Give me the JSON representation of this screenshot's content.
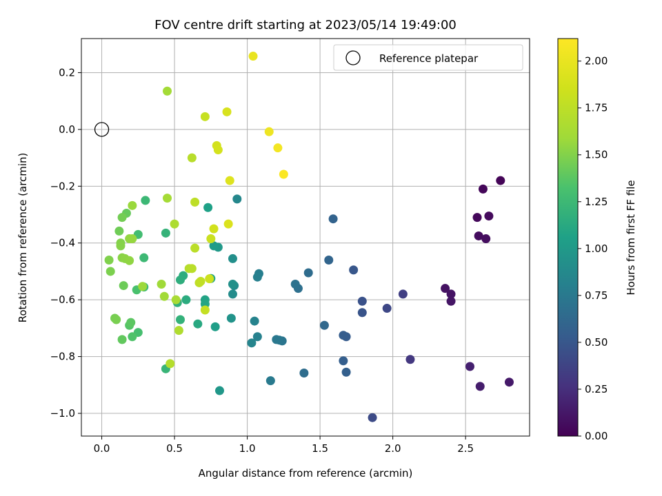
{
  "chart_data": {
    "type": "scatter",
    "title": "FOV centre drift starting at 2023/05/14 19:49:00",
    "xlabel": "Angular distance from reference (arcmin)",
    "ylabel": "Rotation from reference (arcmin)",
    "xlim": [
      -0.14,
      2.94
    ],
    "ylim": [
      -1.08,
      0.32
    ],
    "x_ticks": [
      0.0,
      0.5,
      1.0,
      1.5,
      2.0,
      2.5
    ],
    "x_tick_labels": [
      "0.0",
      "0.5",
      "1.0",
      "1.5",
      "2.0",
      "2.5"
    ],
    "y_ticks": [
      0.2,
      0.0,
      -0.2,
      -0.4,
      -0.6,
      -0.8,
      -1.0
    ],
    "y_tick_labels": [
      "0.2",
      "0.0",
      "−0.2",
      "−0.4",
      "−0.6",
      "−0.8",
      "−1.0"
    ],
    "grid": true,
    "legend": {
      "position": "top-right",
      "label": "Reference platepar"
    },
    "reference_point": {
      "x": 0.0,
      "y": 0.0
    },
    "colormap": "viridis",
    "colorbar": {
      "label": "Hours from first FF file",
      "range": [
        0.0,
        2.12
      ],
      "ticks": [
        0.0,
        0.25,
        0.5,
        0.75,
        1.0,
        1.25,
        1.5,
        1.75,
        2.0
      ],
      "tick_labels": [
        "0.00",
        "0.25",
        "0.50",
        "0.75",
        "1.00",
        "1.25",
        "1.50",
        "1.75",
        "2.00"
      ]
    },
    "points": [
      {
        "x": 2.74,
        "y": -0.18,
        "t": 0.02
      },
      {
        "x": 2.62,
        "y": -0.21,
        "t": 0.03
      },
      {
        "x": 2.58,
        "y": -0.31,
        "t": 0.04
      },
      {
        "x": 2.66,
        "y": -0.305,
        "t": 0.05
      },
      {
        "x": 2.59,
        "y": -0.375,
        "t": 0.06
      },
      {
        "x": 2.64,
        "y": -0.385,
        "t": 0.07
      },
      {
        "x": 2.36,
        "y": -0.56,
        "t": 0.09
      },
      {
        "x": 2.4,
        "y": -0.58,
        "t": 0.1
      },
      {
        "x": 2.4,
        "y": -0.605,
        "t": 0.11
      },
      {
        "x": 2.8,
        "y": -0.89,
        "t": 0.13
      },
      {
        "x": 2.6,
        "y": -0.905,
        "t": 0.15
      },
      {
        "x": 2.53,
        "y": -0.835,
        "t": 0.17
      },
      {
        "x": 2.12,
        "y": -0.81,
        "t": 0.3
      },
      {
        "x": 2.07,
        "y": -0.58,
        "t": 0.35
      },
      {
        "x": 1.96,
        "y": -0.63,
        "t": 0.4
      },
      {
        "x": 1.86,
        "y": -1.015,
        "t": 0.42
      },
      {
        "x": 1.79,
        "y": -0.605,
        "t": 0.47
      },
      {
        "x": 1.79,
        "y": -0.645,
        "t": 0.48
      },
      {
        "x": 1.73,
        "y": -0.495,
        "t": 0.5
      },
      {
        "x": 1.68,
        "y": -0.73,
        "t": 0.53
      },
      {
        "x": 1.66,
        "y": -0.725,
        "t": 0.54
      },
      {
        "x": 1.66,
        "y": -0.815,
        "t": 0.55
      },
      {
        "x": 1.68,
        "y": -0.855,
        "t": 0.56
      },
      {
        "x": 1.59,
        "y": -0.315,
        "t": 0.58
      },
      {
        "x": 1.56,
        "y": -0.46,
        "t": 0.6
      },
      {
        "x": 1.53,
        "y": -0.69,
        "t": 0.62
      },
      {
        "x": 1.42,
        "y": -0.505,
        "t": 0.65
      },
      {
        "x": 1.39,
        "y": -0.858,
        "t": 0.66
      },
      {
        "x": 1.35,
        "y": -0.56,
        "t": 0.68
      },
      {
        "x": 1.33,
        "y": -0.545,
        "t": 0.7
      },
      {
        "x": 1.24,
        "y": -0.745,
        "t": 0.72
      },
      {
        "x": 1.22,
        "y": -0.742,
        "t": 0.73
      },
      {
        "x": 1.2,
        "y": -0.74,
        "t": 0.74
      },
      {
        "x": 1.16,
        "y": -0.885,
        "t": 0.76
      },
      {
        "x": 1.08,
        "y": -0.508,
        "t": 0.79
      },
      {
        "x": 1.07,
        "y": -0.52,
        "t": 0.8
      },
      {
        "x": 1.07,
        "y": -0.73,
        "t": 0.81
      },
      {
        "x": 1.05,
        "y": -0.675,
        "t": 0.83
      },
      {
        "x": 1.03,
        "y": -0.752,
        "t": 0.84
      },
      {
        "x": 0.93,
        "y": -0.245,
        "t": 0.86
      },
      {
        "x": 0.91,
        "y": -0.55,
        "t": 0.88
      },
      {
        "x": 0.9,
        "y": -0.58,
        "t": 0.9
      },
      {
        "x": 0.9,
        "y": -0.455,
        "t": 0.92
      },
      {
        "x": 0.9,
        "y": -0.545,
        "t": 0.93
      },
      {
        "x": 0.89,
        "y": -0.665,
        "t": 0.95
      },
      {
        "x": 0.81,
        "y": -0.92,
        "t": 0.98
      },
      {
        "x": 0.8,
        "y": -0.415,
        "t": 1.0
      },
      {
        "x": 0.77,
        "y": -0.41,
        "t": 1.02
      },
      {
        "x": 0.78,
        "y": -0.695,
        "t": 1.04
      },
      {
        "x": 0.73,
        "y": -0.275,
        "t": 1.06
      },
      {
        "x": 0.71,
        "y": -0.6,
        "t": 1.08
      },
      {
        "x": 0.71,
        "y": -0.615,
        "t": 1.09
      },
      {
        "x": 0.75,
        "y": -0.525,
        "t": 1.1
      },
      {
        "x": 0.66,
        "y": -0.685,
        "t": 1.12
      },
      {
        "x": 0.58,
        "y": -0.6,
        "t": 1.14
      },
      {
        "x": 0.56,
        "y": -0.515,
        "t": 1.15
      },
      {
        "x": 0.54,
        "y": -0.53,
        "t": 1.16
      },
      {
        "x": 0.52,
        "y": -0.61,
        "t": 1.18
      },
      {
        "x": 0.54,
        "y": -0.67,
        "t": 1.19
      },
      {
        "x": 0.44,
        "y": -0.365,
        "t": 1.2
      },
      {
        "x": 0.44,
        "y": -0.843,
        "t": 1.22
      },
      {
        "x": 0.3,
        "y": -0.25,
        "t": 1.24
      },
      {
        "x": 0.29,
        "y": -0.452,
        "t": 1.25
      },
      {
        "x": 0.29,
        "y": -0.555,
        "t": 1.27
      },
      {
        "x": 0.25,
        "y": -0.37,
        "t": 1.28
      },
      {
        "x": 0.25,
        "y": -0.715,
        "t": 1.3
      },
      {
        "x": 0.24,
        "y": -0.565,
        "t": 1.32
      },
      {
        "x": 0.21,
        "y": -0.73,
        "t": 1.34
      },
      {
        "x": 0.19,
        "y": -0.69,
        "t": 1.36
      },
      {
        "x": 0.2,
        "y": -0.68,
        "t": 1.38
      },
      {
        "x": 0.14,
        "y": -0.74,
        "t": 1.4
      },
      {
        "x": 0.17,
        "y": -0.295,
        "t": 1.41
      },
      {
        "x": 0.15,
        "y": -0.55,
        "t": 1.43
      },
      {
        "x": 0.12,
        "y": -0.358,
        "t": 1.44
      },
      {
        "x": 0.14,
        "y": -0.31,
        "t": 1.45
      },
      {
        "x": 0.09,
        "y": -0.665,
        "t": 1.46
      },
      {
        "x": 0.1,
        "y": -0.67,
        "t": 1.47
      },
      {
        "x": 0.06,
        "y": -0.5,
        "t": 1.48
      },
      {
        "x": 0.05,
        "y": -0.46,
        "t": 1.49
      },
      {
        "x": 0.13,
        "y": -0.4,
        "t": 1.5
      },
      {
        "x": 0.13,
        "y": -0.41,
        "t": 1.51
      },
      {
        "x": 0.14,
        "y": -0.452,
        "t": 1.52
      },
      {
        "x": 0.16,
        "y": -0.455,
        "t": 1.53
      },
      {
        "x": 0.19,
        "y": -0.462,
        "t": 1.54
      },
      {
        "x": 0.19,
        "y": -0.385,
        "t": 1.55
      },
      {
        "x": 0.21,
        "y": -0.385,
        "t": 1.56
      },
      {
        "x": 0.21,
        "y": -0.268,
        "t": 1.57
      },
      {
        "x": 0.28,
        "y": -0.553,
        "t": 1.58
      },
      {
        "x": 0.41,
        "y": -0.545,
        "t": 1.59
      },
      {
        "x": 0.43,
        "y": -0.588,
        "t": 1.6
      },
      {
        "x": 0.45,
        "y": 0.135,
        "t": 1.61
      },
      {
        "x": 0.45,
        "y": -0.242,
        "t": 1.62
      },
      {
        "x": 0.51,
        "y": -0.6,
        "t": 1.64
      },
      {
        "x": 0.5,
        "y": -0.333,
        "t": 1.66
      },
      {
        "x": 0.53,
        "y": -0.708,
        "t": 1.68
      },
      {
        "x": 0.47,
        "y": -0.825,
        "t": 1.7
      },
      {
        "x": 0.6,
        "y": -0.49,
        "t": 1.71
      },
      {
        "x": 0.62,
        "y": -0.1,
        "t": 1.72
      },
      {
        "x": 0.62,
        "y": -0.49,
        "t": 1.73
      },
      {
        "x": 0.64,
        "y": -0.418,
        "t": 1.74
      },
      {
        "x": 0.64,
        "y": -0.256,
        "t": 1.75
      },
      {
        "x": 0.67,
        "y": -0.54,
        "t": 1.76
      },
      {
        "x": 0.68,
        "y": -0.535,
        "t": 1.77
      },
      {
        "x": 0.71,
        "y": -0.636,
        "t": 1.79
      },
      {
        "x": 0.71,
        "y": 0.045,
        "t": 1.8
      },
      {
        "x": 0.75,
        "y": -0.385,
        "t": 1.82
      },
      {
        "x": 0.74,
        "y": -0.526,
        "t": 1.84
      },
      {
        "x": 0.77,
        "y": -0.35,
        "t": 1.86
      },
      {
        "x": 0.79,
        "y": -0.057,
        "t": 1.87
      },
      {
        "x": 0.8,
        "y": -0.072,
        "t": 1.88
      },
      {
        "x": 0.86,
        "y": 0.062,
        "t": 1.9
      },
      {
        "x": 0.87,
        "y": -0.333,
        "t": 1.92
      },
      {
        "x": 0.88,
        "y": -0.18,
        "t": 1.94
      },
      {
        "x": 1.04,
        "y": 0.258,
        "t": 2.0
      },
      {
        "x": 1.15,
        "y": -0.008,
        "t": 2.03
      },
      {
        "x": 1.21,
        "y": -0.065,
        "t": 2.06
      },
      {
        "x": 1.25,
        "y": -0.158,
        "t": 2.1
      }
    ]
  }
}
